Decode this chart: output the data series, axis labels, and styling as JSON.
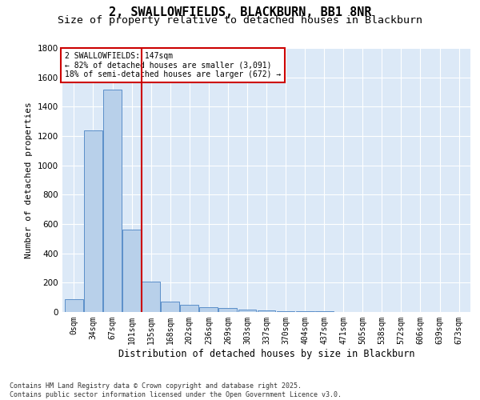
{
  "title": "2, SWALLOWFIELDS, BLACKBURN, BB1 8NR",
  "subtitle": "Size of property relative to detached houses in Blackburn",
  "xlabel": "Distribution of detached houses by size in Blackburn",
  "ylabel": "Number of detached properties",
  "footer": "Contains HM Land Registry data © Crown copyright and database right 2025.\nContains public sector information licensed under the Open Government Licence v3.0.",
  "categories": [
    "0sqm",
    "34sqm",
    "67sqm",
    "101sqm",
    "135sqm",
    "168sqm",
    "202sqm",
    "236sqm",
    "269sqm",
    "303sqm",
    "337sqm",
    "370sqm",
    "404sqm",
    "437sqm",
    "471sqm",
    "505sqm",
    "538sqm",
    "572sqm",
    "606sqm",
    "639sqm",
    "673sqm"
  ],
  "values": [
    90,
    1240,
    1515,
    560,
    210,
    70,
    48,
    35,
    28,
    18,
    12,
    8,
    5,
    3,
    2,
    1,
    1,
    0,
    0,
    0,
    0
  ],
  "bar_color": "#b8d0ea",
  "bar_edge_color": "#5b8fc9",
  "bg_color": "#dce9f7",
  "grid_color": "#ffffff",
  "vline_color": "#cc0000",
  "vline_pos": 3.5,
  "ylim": [
    0,
    1800
  ],
  "annotation_text": "2 SWALLOWFIELDS: 147sqm\n← 82% of detached houses are smaller (3,091)\n18% of semi-detached houses are larger (672) →",
  "annotation_box_color": "#cc0000",
  "title_fontsize": 11,
  "subtitle_fontsize": 9.5,
  "tick_fontsize": 7,
  "ylabel_fontsize": 8,
  "xlabel_fontsize": 8.5,
  "annot_fontsize": 7,
  "footer_fontsize": 6
}
